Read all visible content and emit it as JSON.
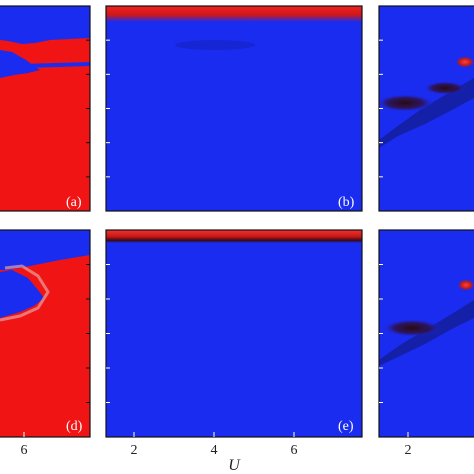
{
  "chart_data": [
    {
      "type": "heatmap",
      "panel_label": "(a)",
      "x_ticks": [],
      "colors": {
        "low": "#1a2cf0",
        "high": "#f01414",
        "mid": "#3a0a10"
      }
    },
    {
      "type": "heatmap",
      "panel_label": "(b)",
      "x_ticks": [],
      "colors": {
        "low": "#1a2cf0",
        "high": "#f01414",
        "mid": "#3a0a10"
      }
    },
    {
      "type": "heatmap",
      "panel_label": "",
      "x_ticks": [],
      "colors": {
        "low": "#1a2cf0",
        "high": "#f01414",
        "mid": "#3a0a10"
      }
    },
    {
      "type": "heatmap",
      "panel_label": "(d)",
      "x_ticks": [
        {
          "value": 6,
          "label": "6"
        }
      ],
      "colors": {
        "low": "#1a2cf0",
        "high": "#f01414",
        "mid": "#3a0a10"
      }
    },
    {
      "type": "heatmap",
      "panel_label": "(e)",
      "xlabel": "U",
      "xlim": [
        1.3,
        7.7
      ],
      "x_ticks": [
        {
          "value": 2,
          "label": "2"
        },
        {
          "value": 4,
          "label": "4"
        },
        {
          "value": 6,
          "label": "6"
        }
      ],
      "colors": {
        "low": "#1a2cf0",
        "high": "#f01414",
        "mid": "#3a0a10"
      }
    },
    {
      "type": "heatmap",
      "panel_label": "",
      "x_ticks": [
        {
          "value": 2,
          "label": "2"
        }
      ],
      "colors": {
        "low": "#1a2cf0",
        "high": "#f01414",
        "mid": "#3a0a10"
      }
    }
  ]
}
